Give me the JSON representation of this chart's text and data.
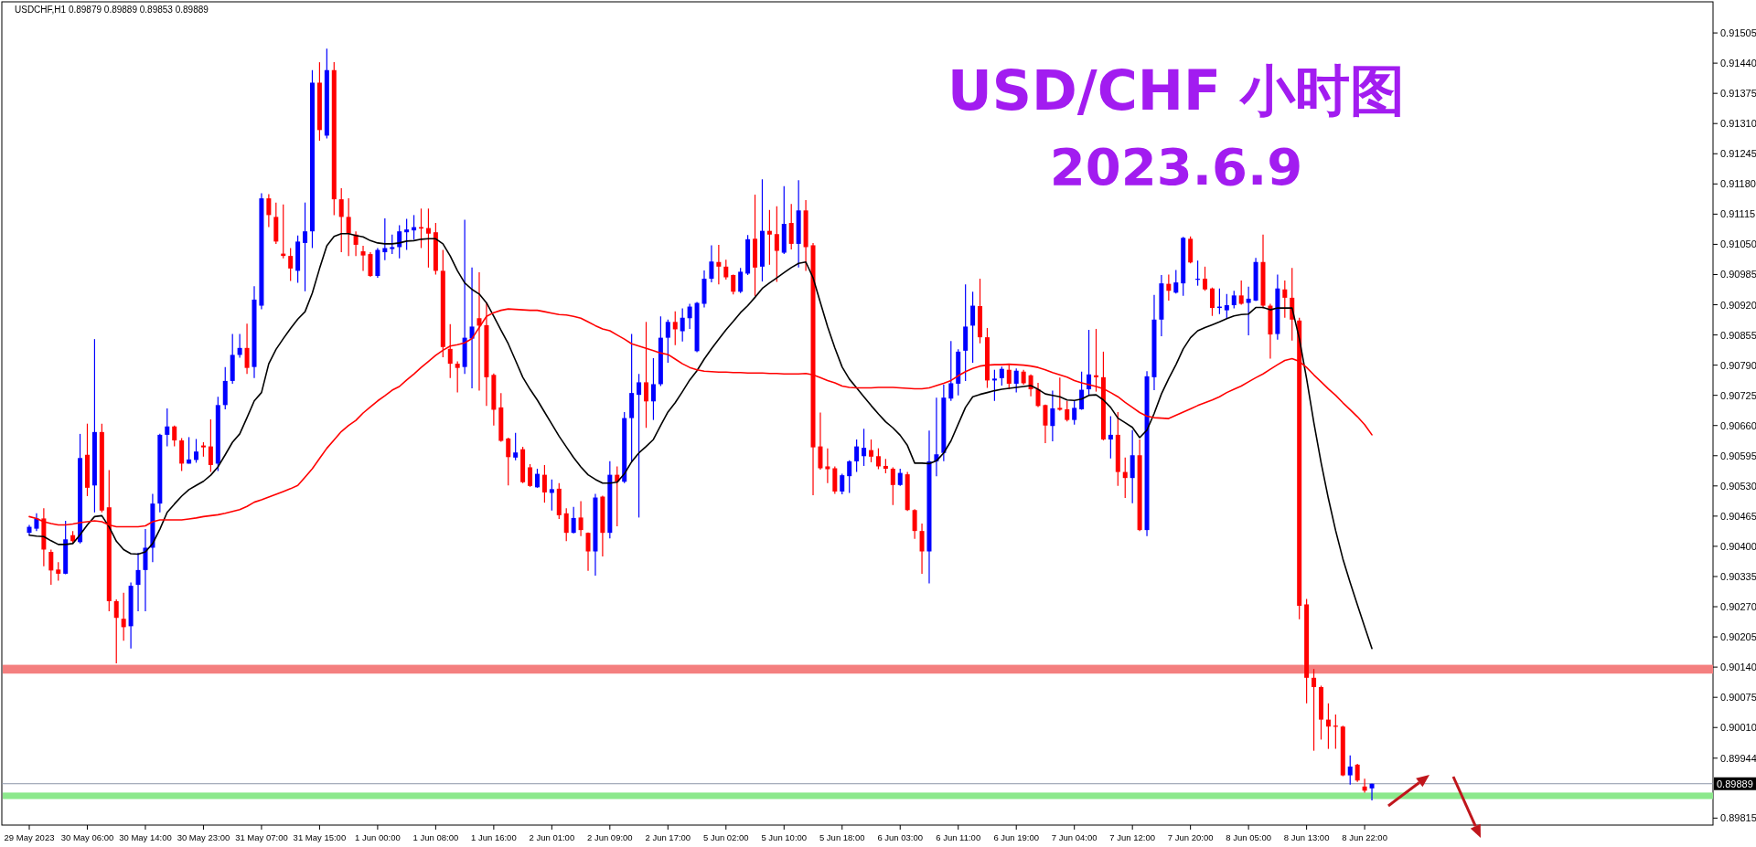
{
  "chart_data": {
    "type": "candlestick",
    "title": "USD/CHF 小时图",
    "subtitle": "2023.6.9",
    "annotations": [
      "USDCHF,H1  0.89879 0.89889 0.89853 0.89889"
    ],
    "categories": [
      "29 May 2023",
      null,
      null,
      null,
      null,
      null,
      null,
      null,
      "30 May 06:00",
      null,
      null,
      null,
      null,
      null,
      null,
      null,
      "30 May 14:00",
      null,
      null,
      null,
      null,
      null,
      null,
      null,
      "30 May 23:00",
      null,
      null,
      null,
      null,
      null,
      null,
      null,
      "31 May 07:00",
      null,
      null,
      null,
      null,
      null,
      null,
      null,
      "31 May 15:00",
      null,
      null,
      null,
      null,
      null,
      null,
      null,
      "1 Jun 00:00",
      null,
      null,
      null,
      null,
      null,
      null,
      null,
      "1 Jun 08:00",
      null,
      null,
      null,
      null,
      null,
      null,
      null,
      "1 Jun 16:00",
      null,
      null,
      null,
      null,
      null,
      null,
      null,
      "2 Jun 01:00",
      null,
      null,
      null,
      null,
      null,
      null,
      null,
      "2 Jun 09:00",
      null,
      null,
      null,
      null,
      null,
      null,
      null,
      "2 Jun 17:00",
      null,
      null,
      null,
      null,
      null,
      null,
      null,
      "5 Jun 02:00",
      null,
      null,
      null,
      null,
      null,
      null,
      null,
      "5 Jun 10:00",
      null,
      null,
      null,
      null,
      null,
      null,
      null,
      "5 Jun 18:00",
      null,
      null,
      null,
      null,
      null,
      null,
      null,
      "6 Jun 03:00",
      null,
      null,
      null,
      null,
      null,
      null,
      null,
      "6 Jun 11:00",
      null,
      null,
      null,
      null,
      null,
      null,
      null,
      "6 Jun 19:00",
      null,
      null,
      null,
      null,
      null,
      null,
      null,
      "7 Jun 04:00",
      null,
      null,
      null,
      null,
      null,
      null,
      null,
      "7 Jun 12:00",
      null,
      null,
      null,
      null,
      null,
      null,
      null,
      "7 Jun 20:00",
      null,
      null,
      null,
      null,
      null,
      null,
      null,
      "8 Jun 05:00",
      null,
      null,
      null,
      null,
      null,
      null,
      null,
      "8 Jun 13:00",
      null,
      null,
      null,
      null,
      null,
      null,
      null,
      "8 Jun 22:00",
      null
    ],
    "ohlc": [
      [
        0.90429,
        0.90446,
        0.90424,
        0.90442
      ],
      [
        0.90438,
        0.90471,
        0.90433,
        0.9046
      ],
      [
        0.9046,
        0.90482,
        0.90357,
        0.90393
      ],
      [
        0.90388,
        0.90393,
        0.90317,
        0.90348
      ],
      [
        0.9035,
        0.90366,
        0.90326,
        0.90341
      ],
      [
        0.90341,
        0.90455,
        0.9034,
        0.90415
      ],
      [
        0.90424,
        0.90433,
        0.90406,
        0.90411
      ],
      [
        0.90409,
        0.90642,
        0.90406,
        0.9059
      ],
      [
        0.90597,
        0.90664,
        0.90508,
        0.90526
      ],
      [
        0.90531,
        0.90846,
        0.90473,
        0.90646
      ],
      [
        0.90646,
        0.90664,
        0.90473,
        0.90477
      ],
      [
        0.90484,
        0.90564,
        0.9026,
        0.90282
      ],
      [
        0.90282,
        0.90286,
        0.90148,
        0.90246
      ],
      [
        0.90244,
        0.903,
        0.90197,
        0.90226
      ],
      [
        0.90228,
        0.90322,
        0.9018,
        0.90315
      ],
      [
        0.90317,
        0.90386,
        0.9026,
        0.90349
      ],
      [
        0.90349,
        0.90437,
        0.9026,
        0.90397
      ],
      [
        0.90397,
        0.90513,
        0.90366,
        0.90492
      ],
      [
        0.90492,
        0.90642,
        0.90473,
        0.9064
      ],
      [
        0.9064,
        0.90697,
        0.90615,
        0.90658
      ],
      [
        0.90658,
        0.9066,
        0.90615,
        0.90628
      ],
      [
        0.90628,
        0.90633,
        0.90562,
        0.90578
      ],
      [
        0.90578,
        0.90635,
        0.90578,
        0.90587
      ],
      [
        0.90586,
        0.90631,
        0.9058,
        0.90604
      ],
      [
        0.90617,
        0.90624,
        0.90593,
        0.90613
      ],
      [
        0.90615,
        0.90673,
        0.9056,
        0.90575
      ],
      [
        0.90578,
        0.90722,
        0.90562,
        0.90704
      ],
      [
        0.90704,
        0.90786,
        0.90695,
        0.90756
      ],
      [
        0.90756,
        0.90857,
        0.9075,
        0.90812
      ],
      [
        0.90812,
        0.90857,
        0.90806,
        0.90827
      ],
      [
        0.90827,
        0.90879,
        0.90771,
        0.90784
      ],
      [
        0.90786,
        0.9096,
        0.90762,
        0.90931
      ],
      [
        0.90918,
        0.9116,
        0.9091,
        0.91149
      ],
      [
        0.91149,
        0.91158,
        0.91087,
        0.91113
      ],
      [
        0.91109,
        0.9114,
        0.91051,
        0.91056
      ],
      [
        0.9103,
        0.91136,
        0.9102,
        0.91025
      ],
      [
        0.91025,
        0.91042,
        0.90971,
        0.90998
      ],
      [
        0.90993,
        0.91069,
        0.90967,
        0.91056
      ],
      [
        0.91053,
        0.9114,
        0.90949,
        0.91078
      ],
      [
        0.91078,
        0.91425,
        0.91042,
        0.91398
      ],
      [
        0.91398,
        0.91442,
        0.91273,
        0.91296
      ],
      [
        0.91284,
        0.91471,
        0.91278,
        0.91425
      ],
      [
        0.91425,
        0.91442,
        0.91113,
        0.91147
      ],
      [
        0.91147,
        0.91171,
        0.91033,
        0.91109
      ],
      [
        0.91109,
        0.91149,
        0.91025,
        0.91073
      ],
      [
        0.91071,
        0.91078,
        0.91025,
        0.91049
      ],
      [
        0.91035,
        0.91047,
        0.90993,
        0.91026
      ],
      [
        0.91029,
        0.91033,
        0.9098,
        0.90982
      ],
      [
        0.90982,
        0.91042,
        0.90978,
        0.91038
      ],
      [
        0.91033,
        0.91106,
        0.91016,
        0.91042
      ],
      [
        0.9104,
        0.91071,
        0.91029,
        0.91044
      ],
      [
        0.91044,
        0.91091,
        0.9102,
        0.91078
      ],
      [
        0.91076,
        0.91105,
        0.91038,
        0.91082
      ],
      [
        0.9108,
        0.91113,
        0.9106,
        0.91087
      ],
      [
        0.91087,
        0.91127,
        0.91042,
        0.91084
      ],
      [
        0.91085,
        0.91127,
        0.91,
        0.91073
      ],
      [
        0.91076,
        0.91096,
        0.90985,
        0.90993
      ],
      [
        0.90993,
        0.91038,
        0.90807,
        0.90829
      ],
      [
        0.90825,
        0.90878,
        0.90762,
        0.90793
      ],
      [
        0.90793,
        0.90798,
        0.90731,
        0.90784
      ],
      [
        0.90786,
        0.91103,
        0.90771,
        0.90849
      ],
      [
        0.90847,
        0.91,
        0.9074,
        0.90873
      ],
      [
        0.90891,
        0.9099,
        0.90735,
        0.90875
      ],
      [
        0.90876,
        0.90924,
        0.90702,
        0.90764
      ],
      [
        0.90769,
        0.90772,
        0.9066,
        0.90694
      ],
      [
        0.90699,
        0.9073,
        0.90625,
        0.90627
      ],
      [
        0.90632,
        0.90634,
        0.90531,
        0.90592
      ],
      [
        0.90591,
        0.90644,
        0.90585,
        0.90602
      ],
      [
        0.90609,
        0.90614,
        0.90536,
        0.90538
      ],
      [
        0.9057,
        0.90577,
        0.90528,
        0.9053
      ],
      [
        0.90527,
        0.90567,
        0.90526,
        0.90556
      ],
      [
        0.90554,
        0.90575,
        0.90494,
        0.90516
      ],
      [
        0.90515,
        0.90544,
        0.90477,
        0.90523
      ],
      [
        0.90524,
        0.90536,
        0.90459,
        0.90467
      ],
      [
        0.90471,
        0.90482,
        0.90411,
        0.90429
      ],
      [
        0.90429,
        0.90485,
        0.90428,
        0.90461
      ],
      [
        0.90462,
        0.90497,
        0.90422,
        0.90435
      ],
      [
        0.90429,
        0.9043,
        0.90347,
        0.90389
      ],
      [
        0.90389,
        0.90513,
        0.90337,
        0.90505
      ],
      [
        0.90507,
        0.90509,
        0.90378,
        0.90429
      ],
      [
        0.90429,
        0.90583,
        0.90417,
        0.90554
      ],
      [
        0.90554,
        0.90572,
        0.90443,
        0.90539
      ],
      [
        0.90539,
        0.90689,
        0.90536,
        0.90676
      ],
      [
        0.90676,
        0.90857,
        0.90582,
        0.9073
      ],
      [
        0.90726,
        0.90771,
        0.90462,
        0.90753
      ],
      [
        0.90753,
        0.90883,
        0.90655,
        0.90712
      ],
      [
        0.90712,
        0.90805,
        0.90672,
        0.90749
      ],
      [
        0.90749,
        0.90895,
        0.90745,
        0.90849
      ],
      [
        0.90849,
        0.90888,
        0.90795,
        0.90883
      ],
      [
        0.90883,
        0.90906,
        0.90833,
        0.90867
      ],
      [
        0.90863,
        0.90912,
        0.90841,
        0.90892
      ],
      [
        0.90891,
        0.90922,
        0.90868,
        0.90916
      ],
      [
        0.9082,
        0.90926,
        0.90818,
        0.90924
      ],
      [
        0.90922,
        0.90994,
        0.90914,
        0.90976
      ],
      [
        0.90976,
        0.91048,
        0.90968,
        0.91013
      ],
      [
        0.91012,
        0.91049,
        0.90964,
        0.91002
      ],
      [
        0.91002,
        0.91017,
        0.90974,
        0.90979
      ],
      [
        0.90984,
        0.90985,
        0.90942,
        0.90948
      ],
      [
        0.90948,
        0.90999,
        0.90945,
        0.90991
      ],
      [
        0.90987,
        0.9107,
        0.90984,
        0.91061
      ],
      [
        0.91062,
        0.91157,
        0.90939,
        0.91
      ],
      [
        0.91002,
        0.9119,
        0.9097,
        0.91079
      ],
      [
        0.91079,
        0.91124,
        0.91006,
        0.91071
      ],
      [
        0.91072,
        0.91132,
        0.90969,
        0.91036
      ],
      [
        0.91032,
        0.91175,
        0.91029,
        0.91094
      ],
      [
        0.91096,
        0.91137,
        0.91039,
        0.91051
      ],
      [
        0.91051,
        0.91188,
        0.91,
        0.91123
      ],
      [
        0.91123,
        0.91145,
        0.90993,
        0.91044
      ],
      [
        0.91048,
        0.91053,
        0.9051,
        0.90613
      ],
      [
        0.90615,
        0.90688,
        0.90565,
        0.90568
      ],
      [
        0.90572,
        0.90611,
        0.90536,
        0.90566
      ],
      [
        0.90568,
        0.90572,
        0.90513,
        0.90518
      ],
      [
        0.90518,
        0.90556,
        0.90512,
        0.90553
      ],
      [
        0.90551,
        0.90585,
        0.90515,
        0.90583
      ],
      [
        0.90583,
        0.9063,
        0.9056,
        0.90615
      ],
      [
        0.90594,
        0.90653,
        0.90573,
        0.90612
      ],
      [
        0.90607,
        0.9063,
        0.90581,
        0.90593
      ],
      [
        0.90594,
        0.90611,
        0.90566,
        0.90572
      ],
      [
        0.90573,
        0.90588,
        0.90557,
        0.90567
      ],
      [
        0.90567,
        0.9057,
        0.90489,
        0.90532
      ],
      [
        0.90532,
        0.90567,
        0.9053,
        0.90558
      ],
      [
        0.90555,
        0.9056,
        0.90476,
        0.90478
      ],
      [
        0.90478,
        0.9048,
        0.90416,
        0.90433
      ],
      [
        0.90433,
        0.90449,
        0.90341,
        0.90389
      ],
      [
        0.90389,
        0.90649,
        0.9032,
        0.90583
      ],
      [
        0.90583,
        0.9072,
        0.90551,
        0.90598
      ],
      [
        0.90601,
        0.90748,
        0.90583,
        0.9072
      ],
      [
        0.90718,
        0.90842,
        0.90713,
        0.90751
      ],
      [
        0.9075,
        0.90824,
        0.90725,
        0.90819
      ],
      [
        0.90821,
        0.90964,
        0.90756,
        0.90873
      ],
      [
        0.90875,
        0.90948,
        0.90795,
        0.90918
      ],
      [
        0.90917,
        0.90976,
        0.90837,
        0.9085
      ],
      [
        0.9085,
        0.9087,
        0.90741,
        0.90757
      ],
      [
        0.90757,
        0.9078,
        0.90713,
        0.90761
      ],
      [
        0.90762,
        0.90787,
        0.90746,
        0.90782
      ],
      [
        0.9078,
        0.90793,
        0.90738,
        0.9075
      ],
      [
        0.9075,
        0.90783,
        0.90731,
        0.90778
      ],
      [
        0.90776,
        0.9078,
        0.90748,
        0.90751
      ],
      [
        0.90768,
        0.9077,
        0.90723,
        0.90738
      ],
      [
        0.90738,
        0.90752,
        0.907,
        0.90702
      ],
      [
        0.90704,
        0.90705,
        0.90622,
        0.9066
      ],
      [
        0.90659,
        0.90735,
        0.90626,
        0.90697
      ],
      [
        0.90698,
        0.90763,
        0.90692,
        0.90694
      ],
      [
        0.90695,
        0.90713,
        0.90669,
        0.90672
      ],
      [
        0.90672,
        0.90713,
        0.90662,
        0.90698
      ],
      [
        0.90695,
        0.90776,
        0.90694,
        0.90737
      ],
      [
        0.90738,
        0.90866,
        0.90725,
        0.9077
      ],
      [
        0.90768,
        0.90868,
        0.90733,
        0.90764
      ],
      [
        0.90764,
        0.90819,
        0.90628,
        0.9063
      ],
      [
        0.9063,
        0.9068,
        0.90589,
        0.9064
      ],
      [
        0.9064,
        0.90689,
        0.9053,
        0.9056
      ],
      [
        0.9056,
        0.90591,
        0.90504,
        0.90547
      ],
      [
        0.90547,
        0.9065,
        0.90493,
        0.90596
      ],
      [
        0.90596,
        0.9063,
        0.90433,
        0.90435
      ],
      [
        0.90435,
        0.90777,
        0.90422,
        0.90766
      ],
      [
        0.90764,
        0.90941,
        0.90736,
        0.90888
      ],
      [
        0.90888,
        0.90984,
        0.90852,
        0.90966
      ],
      [
        0.90965,
        0.90985,
        0.90929,
        0.9095
      ],
      [
        0.90946,
        0.90995,
        0.90944,
        0.90968
      ],
      [
        0.90966,
        0.91066,
        0.90939,
        0.91064
      ],
      [
        0.91062,
        0.91067,
        0.91009,
        0.91011
      ],
      [
        0.90974,
        0.91015,
        0.90961,
        0.90976
      ],
      [
        0.90976,
        0.91002,
        0.9095,
        0.90953
      ],
      [
        0.90955,
        0.90957,
        0.90896,
        0.90913
      ],
      [
        0.90913,
        0.90955,
        0.909,
        0.90916
      ],
      [
        0.90908,
        0.90943,
        0.9089,
        0.90919
      ],
      [
        0.90919,
        0.9095,
        0.90912,
        0.9094
      ],
      [
        0.9094,
        0.90972,
        0.9092,
        0.90922
      ],
      [
        0.90924,
        0.90959,
        0.90854,
        0.90933
      ],
      [
        0.90929,
        0.91021,
        0.90928,
        0.91012
      ],
      [
        0.91012,
        0.91071,
        0.90912,
        0.90918
      ],
      [
        0.90918,
        0.90922,
        0.90804,
        0.90856
      ],
      [
        0.90857,
        0.90985,
        0.90845,
        0.90955
      ],
      [
        0.90953,
        0.90972,
        0.90892,
        0.90935
      ],
      [
        0.90935,
        0.90999,
        0.90843,
        0.90888
      ],
      [
        0.90886,
        0.90892,
        0.90243,
        0.90272
      ],
      [
        0.90275,
        0.90287,
        0.90062,
        0.90117
      ],
      [
        0.90117,
        0.90136,
        0.8996,
        0.90097
      ],
      [
        0.90097,
        0.901,
        0.89984,
        0.90027
      ],
      [
        0.90027,
        0.90062,
        0.89964,
        0.90012
      ],
      [
        0.90014,
        0.90038,
        0.89964,
        0.90012
      ],
      [
        0.90012,
        0.90014,
        0.89905,
        0.89907
      ],
      [
        0.89907,
        0.8995,
        0.89887,
        0.89926
      ],
      [
        0.8993,
        0.89932,
        0.89893,
        0.89896
      ],
      [
        0.89883,
        0.899,
        0.8987,
        0.89874
      ],
      [
        0.89879,
        0.89889,
        0.89853,
        0.89889
      ]
    ],
    "series": [
      {
        "type": "line",
        "color": "#000000",
        "values": [
          0.90424,
          0.90422,
          0.90421,
          0.90412,
          0.90404,
          0.90404,
          0.90406,
          0.90425,
          0.90446,
          0.90464,
          0.90466,
          0.90442,
          0.90411,
          0.90393,
          0.90384,
          0.90383,
          0.90388,
          0.90406,
          0.90437,
          0.90473,
          0.90491,
          0.90508,
          0.90522,
          0.90531,
          0.9054,
          0.90553,
          0.90571,
          0.90597,
          0.90624,
          0.90642,
          0.90677,
          0.90713,
          0.90731,
          0.90793,
          0.90824,
          0.90847,
          0.90869,
          0.90889,
          0.90905,
          0.90945,
          0.90998,
          0.91047,
          0.91067,
          0.91073,
          0.91073,
          0.91069,
          0.91066,
          0.91058,
          0.91053,
          0.91051,
          0.91051,
          0.91053,
          0.91057,
          0.91058,
          0.91061,
          0.91062,
          0.91062,
          0.91051,
          0.91025,
          0.90993,
          0.90967,
          0.90953,
          0.90943,
          0.90924,
          0.90895,
          0.90865,
          0.90836,
          0.908,
          0.90764,
          0.90738,
          0.90715,
          0.90689,
          0.90663,
          0.90637,
          0.90614,
          0.90591,
          0.90571,
          0.90554,
          0.90544,
          0.90536,
          0.90536,
          0.90538,
          0.90556,
          0.90582,
          0.90601,
          0.90615,
          0.9063,
          0.9066,
          0.90689,
          0.90709,
          0.90733,
          0.90758,
          0.90778,
          0.90803,
          0.90825,
          0.90846,
          0.90866,
          0.90884,
          0.90903,
          0.90918,
          0.90936,
          0.90955,
          0.90967,
          0.90978,
          0.90989,
          0.91,
          0.91009,
          0.91012,
          0.90978,
          0.90925,
          0.90873,
          0.90827,
          0.90786,
          0.9076,
          0.90741,
          0.90722,
          0.90703,
          0.90685,
          0.90668,
          0.90655,
          0.90639,
          0.90617,
          0.90579,
          0.90579,
          0.90578,
          0.90584,
          0.90601,
          0.90627,
          0.90663,
          0.90699,
          0.90722,
          0.90727,
          0.90731,
          0.90735,
          0.90738,
          0.9074,
          0.90742,
          0.90744,
          0.90746,
          0.90738,
          0.90728,
          0.90725,
          0.90722,
          0.90715,
          0.90714,
          0.90717,
          0.90725,
          0.90726,
          0.90715,
          0.90699,
          0.90676,
          0.90666,
          0.90656,
          0.90634,
          0.9065,
          0.90686,
          0.90728,
          0.90761,
          0.90791,
          0.90825,
          0.90849,
          0.90864,
          0.90871,
          0.90877,
          0.90883,
          0.9089,
          0.90896,
          0.90899,
          0.909,
          0.90914,
          0.90914,
          0.90909,
          0.90913,
          0.90913,
          0.90913,
          0.90847,
          0.90761,
          0.90666,
          0.9058,
          0.90503,
          0.90434,
          0.90373,
          0.90322,
          0.90274,
          0.90227,
          0.9018
        ]
      },
      {
        "type": "line",
        "color": "#ff0000",
        "values": [
          0.90464,
          0.9046,
          0.90453,
          0.90449,
          0.90446,
          0.90446,
          0.90448,
          0.90451,
          0.90453,
          0.90455,
          0.90453,
          0.90446,
          0.90442,
          0.90442,
          0.90442,
          0.90442,
          0.90444,
          0.90453,
          0.90457,
          0.90457,
          0.90457,
          0.90457,
          0.90459,
          0.90461,
          0.90464,
          0.90466,
          0.90468,
          0.90471,
          0.90475,
          0.90479,
          0.90486,
          0.90495,
          0.905,
          0.90506,
          0.90512,
          0.90518,
          0.90524,
          0.90531,
          0.90549,
          0.90567,
          0.90589,
          0.90611,
          0.90629,
          0.90647,
          0.9066,
          0.90671,
          0.90687,
          0.907,
          0.90713,
          0.90724,
          0.90736,
          0.90744,
          0.90758,
          0.90771,
          0.90785,
          0.90798,
          0.90811,
          0.90822,
          0.90831,
          0.90834,
          0.90838,
          0.90847,
          0.90871,
          0.90895,
          0.90903,
          0.90908,
          0.90911,
          0.9091,
          0.90909,
          0.90908,
          0.90908,
          0.90905,
          0.90902,
          0.90899,
          0.90898,
          0.90895,
          0.90891,
          0.90883,
          0.90875,
          0.90868,
          0.90864,
          0.90855,
          0.90846,
          0.90836,
          0.90831,
          0.90826,
          0.90821,
          0.90816,
          0.90813,
          0.90803,
          0.90793,
          0.90785,
          0.9078,
          0.90777,
          0.90776,
          0.90775,
          0.90775,
          0.90774,
          0.90774,
          0.90773,
          0.90773,
          0.90773,
          0.90772,
          0.90772,
          0.90771,
          0.90771,
          0.90771,
          0.90772,
          0.90769,
          0.90763,
          0.90757,
          0.90752,
          0.90745,
          0.90742,
          0.90741,
          0.90741,
          0.90741,
          0.90742,
          0.90742,
          0.90742,
          0.90741,
          0.9074,
          0.90739,
          0.90739,
          0.90741,
          0.90746,
          0.90751,
          0.90757,
          0.90767,
          0.90776,
          0.90783,
          0.90788,
          0.9079,
          0.90791,
          0.90791,
          0.90792,
          0.90791,
          0.9079,
          0.90788,
          0.90785,
          0.9078,
          0.90774,
          0.90769,
          0.90764,
          0.90757,
          0.90752,
          0.90748,
          0.90744,
          0.90739,
          0.90731,
          0.90722,
          0.9071,
          0.90699,
          0.90688,
          0.9068,
          0.90677,
          0.90676,
          0.90675,
          0.90682,
          0.90689,
          0.90696,
          0.90703,
          0.90709,
          0.90715,
          0.90722,
          0.90731,
          0.90738,
          0.90745,
          0.90754,
          0.90763,
          0.90771,
          0.90781,
          0.90791,
          0.908,
          0.90804,
          0.90798,
          0.90785,
          0.90769,
          0.90754,
          0.90739,
          0.90725,
          0.90709,
          0.90694,
          0.90679,
          0.90662,
          0.9064
        ]
      }
    ],
    "ylim": [
      0.898,
      0.91572
    ],
    "yticks": [
      {
        "value": 0.91505,
        "label": "0.91505"
      },
      {
        "value": 0.9144,
        "label": "0.91440"
      },
      {
        "value": 0.91375,
        "label": "0.91375"
      },
      {
        "value": 0.9131,
        "label": "0.91310"
      },
      {
        "value": 0.91245,
        "label": "0.91245"
      },
      {
        "value": 0.9118,
        "label": "0.91180"
      },
      {
        "value": 0.91115,
        "label": "0.91115"
      },
      {
        "value": 0.9105,
        "label": "0.91050"
      },
      {
        "value": 0.90985,
        "label": "0.90985"
      },
      {
        "value": 0.9092,
        "label": "0.90920"
      },
      {
        "value": 0.90855,
        "label": "0.90855"
      },
      {
        "value": 0.9079,
        "label": "0.90790"
      },
      {
        "value": 0.90725,
        "label": "0.90725"
      },
      {
        "value": 0.9066,
        "label": "0.90660"
      },
      {
        "value": 0.90595,
        "label": "0.90595"
      },
      {
        "value": 0.9053,
        "label": "0.90530"
      },
      {
        "value": 0.90465,
        "label": "0.90465"
      },
      {
        "value": 0.904,
        "label": "0.90400"
      },
      {
        "value": 0.90335,
        "label": "0.90335"
      },
      {
        "value": 0.9027,
        "label": "0.90270"
      },
      {
        "value": 0.90205,
        "label": "0.90205"
      },
      {
        "value": 0.9014,
        "label": "0.90140"
      },
      {
        "value": 0.90075,
        "label": "0.90075"
      },
      {
        "value": 0.9001,
        "label": "0.90010"
      },
      {
        "value": 0.89944,
        "label": "0.89944"
      },
      {
        "value": 0.89815,
        "label": "0.89815"
      }
    ],
    "ref_lines": [
      {
        "axis": "y",
        "value": 0.89889,
        "label": "0.89889",
        "color": "#8c96a8"
      }
    ],
    "bands": [
      {
        "axis": "y",
        "from": 0.90126,
        "to": 0.90145,
        "color": "#f47f7f"
      },
      {
        "axis": "y",
        "from": 0.89856,
        "to": 0.8987,
        "color": "#8ce88c"
      }
    ]
  }
}
